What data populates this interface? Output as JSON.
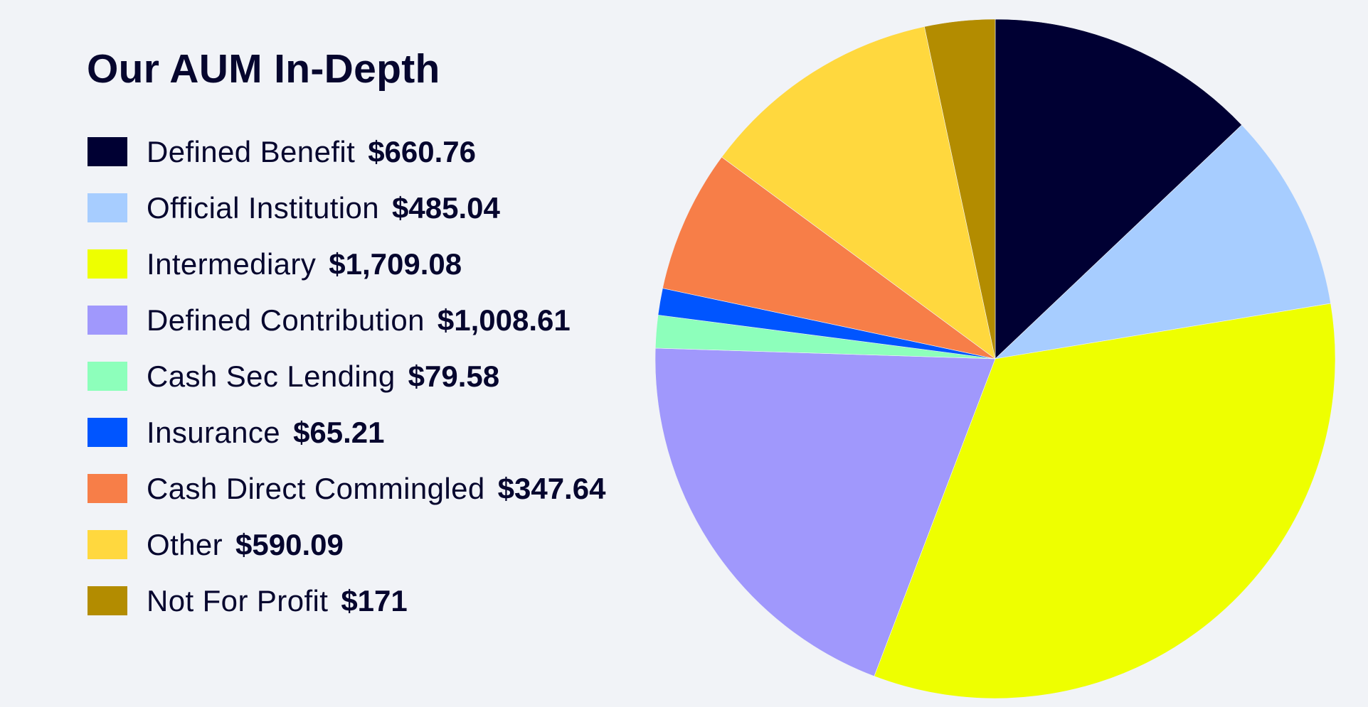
{
  "chart_data": {
    "type": "pie",
    "title": "Our AUM In-Depth",
    "start_angle_deg": 0,
    "direction": "clockwise",
    "legend_position": "left",
    "slices": [
      {
        "label": "Defined Benefit",
        "value": 660.76,
        "display": "$660.76",
        "color": "#000033"
      },
      {
        "label": "Official Institution",
        "value": 485.04,
        "display": "$485.04",
        "color": "#a7cdff"
      },
      {
        "label": "Intermediary",
        "value": 1709.08,
        "display": "$1,709.08",
        "color": "#eeff00"
      },
      {
        "label": "Defined Contribution",
        "value": 1008.61,
        "display": "$1,008.61",
        "color": "#a098fc"
      },
      {
        "label": "Cash Sec Lending",
        "value": 79.58,
        "display": "$79.58",
        "color": "#8dffbb"
      },
      {
        "label": "Insurance",
        "value": 65.21,
        "display": "$65.21",
        "color": "#0055ff"
      },
      {
        "label": "Cash Direct Commingled",
        "value": 347.64,
        "display": "$347.64",
        "color": "#f77e48"
      },
      {
        "label": "Other",
        "value": 590.09,
        "display": "$590.09",
        "color": "#ffd83e"
      },
      {
        "label": "Not For Profit",
        "value": 171,
        "display": "$171",
        "color": "#b38c00"
      }
    ]
  }
}
